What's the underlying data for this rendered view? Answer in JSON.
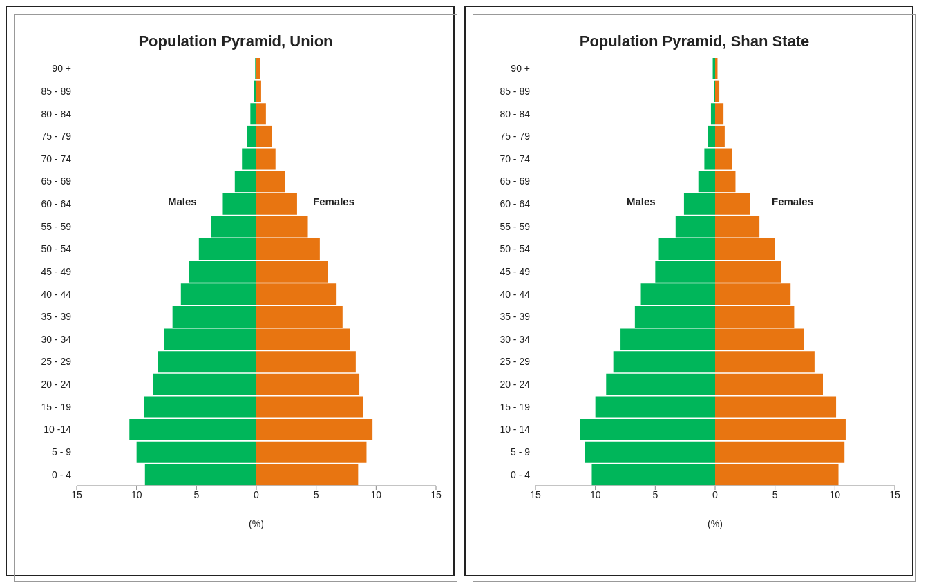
{
  "chart_data": [
    {
      "type": "bar",
      "title": "Population Pyramid, Union",
      "orientation": "horizontal",
      "stacked": true,
      "legend": false,
      "grid": false,
      "xlabel": "(%)",
      "categories": [
        "90 +",
        "85 - 89",
        "80 - 84",
        "75 - 79",
        "70 - 74",
        "65 - 69",
        "60 - 64",
        "55 - 59",
        "50 - 54",
        "45 - 49",
        "40 - 44",
        "35 - 39",
        "30 - 34",
        "25 - 29",
        "20 - 24",
        "15 - 19",
        "10 -14",
        "5 -  9",
        "0 -  4"
      ],
      "series": [
        {
          "name": "Males",
          "color": "#00b65a",
          "values": [
            -0.1,
            -0.2,
            -0.5,
            -0.8,
            -1.2,
            -1.8,
            -2.8,
            -3.8,
            -4.8,
            -5.6,
            -6.3,
            -7.0,
            -7.7,
            -8.2,
            -8.6,
            -9.4,
            -10.6,
            -10.0,
            -9.3
          ]
        },
        {
          "name": "Females",
          "color": "#e87511",
          "values": [
            0.3,
            0.4,
            0.8,
            1.3,
            1.6,
            2.4,
            3.4,
            4.3,
            5.3,
            6.0,
            6.7,
            7.2,
            7.8,
            8.3,
            8.6,
            8.9,
            9.7,
            9.2,
            8.5
          ]
        }
      ],
      "xlim": [
        -15,
        15
      ],
      "xticks": [
        {
          "value": -15,
          "label": "15"
        },
        {
          "value": -10,
          "label": "10"
        },
        {
          "value": -5,
          "label": "5"
        },
        0,
        5,
        10,
        15
      ]
    },
    {
      "type": "bar",
      "title": "Population Pyramid, Shan State",
      "orientation": "horizontal",
      "stacked": true,
      "legend": false,
      "grid": false,
      "xlabel": "(%)",
      "categories": [
        "90 +",
        "85 - 89",
        "80 - 84",
        "75 - 79",
        "70 - 74",
        "65 - 69",
        "60 - 64",
        "55 - 59",
        "50 - 54",
        "45 - 49",
        "40 - 44",
        "35 - 39",
        "30 - 34",
        "25 - 29",
        "20 - 24",
        "15 - 19",
        "10 - 14",
        "5 - 9",
        "0 - 4"
      ],
      "series": [
        {
          "name": "Males",
          "color": "#00b65a",
          "values": [
            -0.2,
            -0.1,
            -0.35,
            -0.6,
            -0.9,
            -1.4,
            -2.6,
            -3.3,
            -4.7,
            -5.0,
            -6.2,
            -6.7,
            -7.9,
            -8.5,
            -9.1,
            -10.0,
            -11.3,
            -10.9,
            -10.3
          ]
        },
        {
          "name": "Females",
          "color": "#e87511",
          "values": [
            0.2,
            0.35,
            0.7,
            0.8,
            1.4,
            1.7,
            2.9,
            3.7,
            5.0,
            5.5,
            6.3,
            6.6,
            7.4,
            8.3,
            9.0,
            10.1,
            10.9,
            10.8,
            10.3
          ]
        }
      ],
      "xlim": [
        -15,
        15
      ],
      "xticks": [
        {
          "value": -15,
          "label": "15"
        },
        {
          "value": -10,
          "label": "10"
        },
        {
          "value": -5,
          "label": "5"
        },
        0,
        5,
        10,
        15
      ]
    }
  ]
}
